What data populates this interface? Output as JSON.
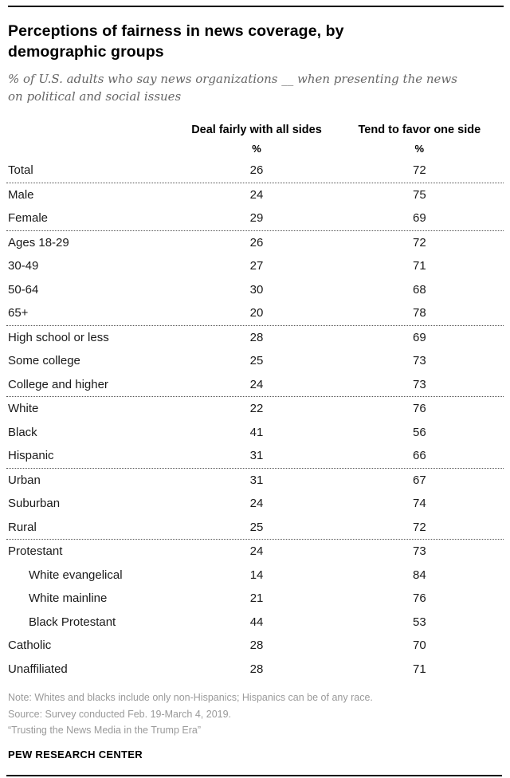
{
  "header": {
    "title": "Perceptions of fairness in news coverage, by\ndemographic groups",
    "subtitle": "% of U.S. adults who say news organizations __ when presenting the news\non political and social issues"
  },
  "table": {
    "columns": [
      "Deal fairly with all sides",
      "Tend to favor one side"
    ],
    "unit": "%",
    "sections": [
      {
        "rows": [
          {
            "label": "Total",
            "indent": false,
            "values": [
              26,
              72
            ]
          }
        ]
      },
      {
        "rows": [
          {
            "label": "Male",
            "indent": false,
            "values": [
              24,
              75
            ]
          },
          {
            "label": "Female",
            "indent": false,
            "values": [
              29,
              69
            ]
          }
        ]
      },
      {
        "rows": [
          {
            "label": "Ages 18-29",
            "indent": false,
            "values": [
              26,
              72
            ]
          },
          {
            "label": "30-49",
            "indent": false,
            "values": [
              27,
              71
            ]
          },
          {
            "label": "50-64",
            "indent": false,
            "values": [
              30,
              68
            ]
          },
          {
            "label": "65+",
            "indent": false,
            "values": [
              20,
              78
            ]
          }
        ]
      },
      {
        "rows": [
          {
            "label": "High school or less",
            "indent": false,
            "values": [
              28,
              69
            ]
          },
          {
            "label": "Some college",
            "indent": false,
            "values": [
              25,
              73
            ]
          },
          {
            "label": "College and higher",
            "indent": false,
            "values": [
              24,
              73
            ]
          }
        ]
      },
      {
        "rows": [
          {
            "label": "White",
            "indent": false,
            "values": [
              22,
              76
            ]
          },
          {
            "label": "Black",
            "indent": false,
            "values": [
              41,
              56
            ]
          },
          {
            "label": "Hispanic",
            "indent": false,
            "values": [
              31,
              66
            ]
          }
        ]
      },
      {
        "rows": [
          {
            "label": "Urban",
            "indent": false,
            "values": [
              31,
              67
            ]
          },
          {
            "label": "Suburban",
            "indent": false,
            "values": [
              24,
              74
            ]
          },
          {
            "label": "Rural",
            "indent": false,
            "values": [
              25,
              72
            ]
          }
        ]
      },
      {
        "rows": [
          {
            "label": "Protestant",
            "indent": false,
            "values": [
              24,
              73
            ]
          },
          {
            "label": "White evangelical",
            "indent": true,
            "values": [
              14,
              84
            ]
          },
          {
            "label": "White mainline",
            "indent": true,
            "values": [
              21,
              76
            ]
          },
          {
            "label": "Black Protestant",
            "indent": true,
            "values": [
              44,
              53
            ]
          },
          {
            "label": "Catholic",
            "indent": false,
            "values": [
              28,
              70
            ]
          },
          {
            "label": "Unaffiliated",
            "indent": false,
            "values": [
              28,
              71
            ]
          }
        ]
      }
    ]
  },
  "footer": {
    "note": "Note: Whites and blacks include only non-Hispanics; Hispanics can be of any race.",
    "source": "Source: Survey conducted Feb. 19-March 4, 2019.",
    "report": "“Trusting the News Media in the Trump Era”",
    "brand": "PEW RESEARCH CENTER"
  },
  "chart_data": {
    "type": "table",
    "title": "Perceptions of fairness in news coverage, by demographic groups",
    "subtitle": "% of U.S. adults who say news organizations __ when presenting the news on political and social issues",
    "unit": "%",
    "categories": [
      "Total",
      "Male",
      "Female",
      "Ages 18-29",
      "30-49",
      "50-64",
      "65+",
      "High school or less",
      "Some college",
      "College and higher",
      "White",
      "Black",
      "Hispanic",
      "Urban",
      "Suburban",
      "Rural",
      "Protestant",
      "White evangelical",
      "White mainline",
      "Black Protestant",
      "Catholic",
      "Unaffiliated"
    ],
    "series": [
      {
        "name": "Deal fairly with all sides",
        "values": [
          26,
          24,
          29,
          26,
          27,
          30,
          20,
          28,
          25,
          24,
          22,
          41,
          31,
          31,
          24,
          25,
          24,
          14,
          21,
          44,
          28,
          28
        ]
      },
      {
        "name": "Tend to favor one side",
        "values": [
          72,
          75,
          69,
          72,
          71,
          68,
          78,
          69,
          73,
          73,
          76,
          56,
          66,
          67,
          74,
          72,
          73,
          84,
          76,
          53,
          70,
          71
        ]
      }
    ],
    "grouped_rows": {
      "gender": [
        "Male",
        "Female"
      ],
      "age": [
        "Ages 18-29",
        "30-49",
        "50-64",
        "65+"
      ],
      "education": [
        "High school or less",
        "Some college",
        "College and higher"
      ],
      "race_ethnicity": [
        "White",
        "Black",
        "Hispanic"
      ],
      "community": [
        "Urban",
        "Suburban",
        "Rural"
      ],
      "religion": [
        "Protestant",
        "White evangelical",
        "White mainline",
        "Black Protestant",
        "Catholic",
        "Unaffiliated"
      ]
    },
    "notes": [
      "Note: Whites and blacks include only non-Hispanics; Hispanics can be of any race.",
      "Source: Survey conducted Feb. 19-March 4, 2019.",
      "“Trusting the News Media in the Trump Era”"
    ],
    "source_brand": "PEW RESEARCH CENTER"
  }
}
